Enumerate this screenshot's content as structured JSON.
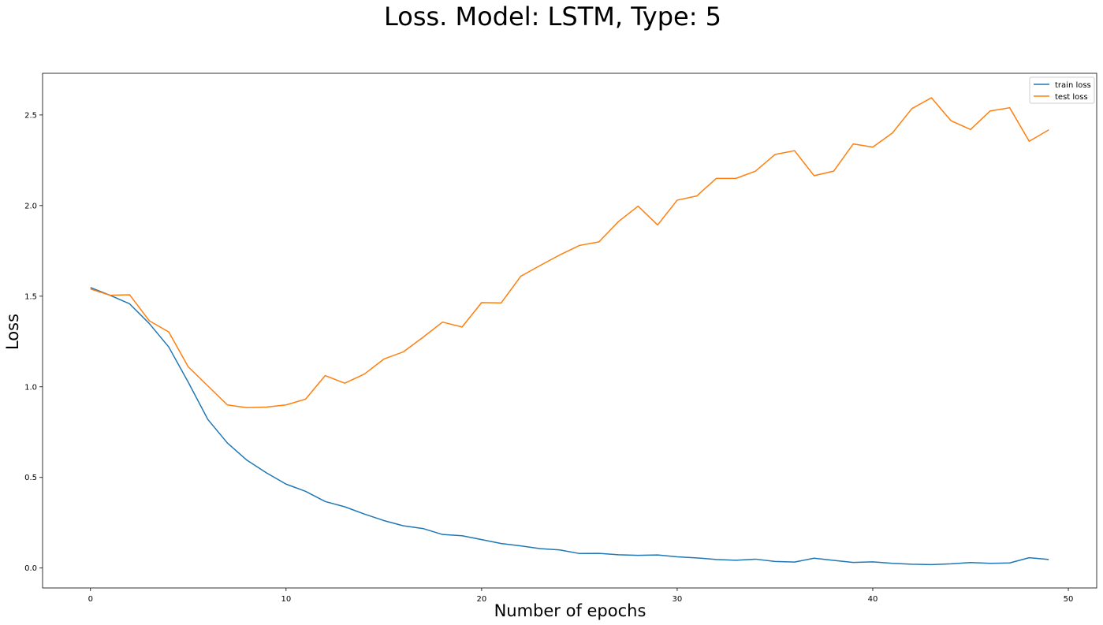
{
  "chart_data": {
    "type": "line",
    "title": "Loss. Model: LSTM, Type: 5",
    "xlabel": "Number of epochs",
    "ylabel": "Loss",
    "xlim": [
      -2.45,
      51.45
    ],
    "ylim": [
      -0.11,
      2.73
    ],
    "xticks": [
      0,
      10,
      20,
      30,
      40,
      50
    ],
    "yticks": [
      0.0,
      0.5,
      1.0,
      1.5,
      2.0,
      2.5
    ],
    "xtick_labels": [
      "0",
      "10",
      "20",
      "30",
      "40",
      "50"
    ],
    "ytick_labels": [
      "0.0",
      "0.5",
      "1.0",
      "1.5",
      "2.0",
      "2.5"
    ],
    "grid": false,
    "legend_position": "top-right",
    "x": [
      0,
      1,
      2,
      3,
      4,
      5,
      6,
      7,
      8,
      9,
      10,
      11,
      12,
      13,
      14,
      15,
      16,
      17,
      18,
      19,
      20,
      21,
      22,
      23,
      24,
      25,
      26,
      27,
      28,
      29,
      30,
      31,
      32,
      33,
      34,
      35,
      36,
      37,
      38,
      39,
      40,
      41,
      42,
      43,
      44,
      45,
      46,
      47,
      48,
      49
    ],
    "series": [
      {
        "name": "train loss",
        "color": "#1f77b4",
        "values": [
          1.548,
          1.505,
          1.458,
          1.35,
          1.22,
          1.025,
          0.82,
          0.69,
          0.595,
          0.525,
          0.463,
          0.423,
          0.367,
          0.338,
          0.298,
          0.262,
          0.233,
          0.218,
          0.185,
          0.178,
          0.157,
          0.135,
          0.122,
          0.107,
          0.1,
          0.08,
          0.081,
          0.073,
          0.07,
          0.072,
          0.062,
          0.056,
          0.047,
          0.043,
          0.049,
          0.036,
          0.033,
          0.054,
          0.042,
          0.031,
          0.034,
          0.026,
          0.021,
          0.019,
          0.023,
          0.03,
          0.026,
          0.028,
          0.057,
          0.047
        ]
      },
      {
        "name": "test loss",
        "color": "#ff7f0e",
        "values": [
          1.54,
          1.505,
          1.508,
          1.365,
          1.303,
          1.11,
          1.005,
          0.9,
          0.885,
          0.888,
          0.9,
          0.932,
          1.062,
          1.02,
          1.07,
          1.153,
          1.193,
          1.273,
          1.357,
          1.33,
          1.465,
          1.463,
          1.61,
          1.67,
          1.728,
          1.78,
          1.8,
          1.912,
          1.997,
          1.893,
          2.03,
          2.053,
          2.15,
          2.15,
          2.19,
          2.282,
          2.303,
          2.165,
          2.19,
          2.34,
          2.323,
          2.4,
          2.535,
          2.595,
          2.468,
          2.42,
          2.522,
          2.54,
          2.355,
          2.418
        ]
      }
    ]
  }
}
